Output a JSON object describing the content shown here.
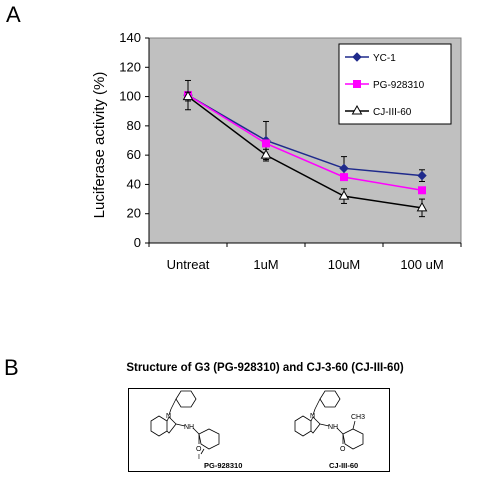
{
  "panels": {
    "a_label": "A",
    "b_label": "B"
  },
  "chart_data": {
    "type": "line",
    "ylabel": "Luciferase activity (%)",
    "xlabel": "",
    "categories": [
      "Untreat",
      "1uM",
      "10uM",
      "100 uM"
    ],
    "ylim": [
      0,
      140
    ],
    "yticks": [
      0,
      20,
      40,
      60,
      80,
      100,
      120,
      140
    ],
    "grid": false,
    "legend_position": "top-right",
    "plot_background": "#c0c0c0",
    "series": [
      {
        "name": "YC-1",
        "values": [
          101,
          70,
          51,
          46
        ],
        "errors": [
          10,
          13,
          8,
          4
        ],
        "color": "#1f2a8c",
        "marker": "diamond"
      },
      {
        "name": "PG-928310",
        "values": [
          101,
          68,
          45,
          36
        ],
        "errors": [
          0,
          0,
          0,
          0
        ],
        "color": "#ff00ff",
        "marker": "square"
      },
      {
        "name": "CJ-III-60",
        "values": [
          100,
          60,
          32,
          24
        ],
        "errors": [
          3,
          4,
          5,
          6
        ],
        "color": "#000000",
        "marker": "triangle-open"
      }
    ]
  },
  "structures": {
    "title": "Structure of G3 (PG-928310) and CJ-3-60 (CJ-III-60)",
    "molecule_1": {
      "label": "PG-928310",
      "atom_n": "N",
      "atom_nh": "NH",
      "atom_o": "O",
      "atom_i": "I"
    },
    "molecule_2": {
      "label": "CJ-III-60",
      "atom_n": "N",
      "atom_nh": "NH",
      "atom_o": "O",
      "atom_ch3": "CH3"
    }
  }
}
